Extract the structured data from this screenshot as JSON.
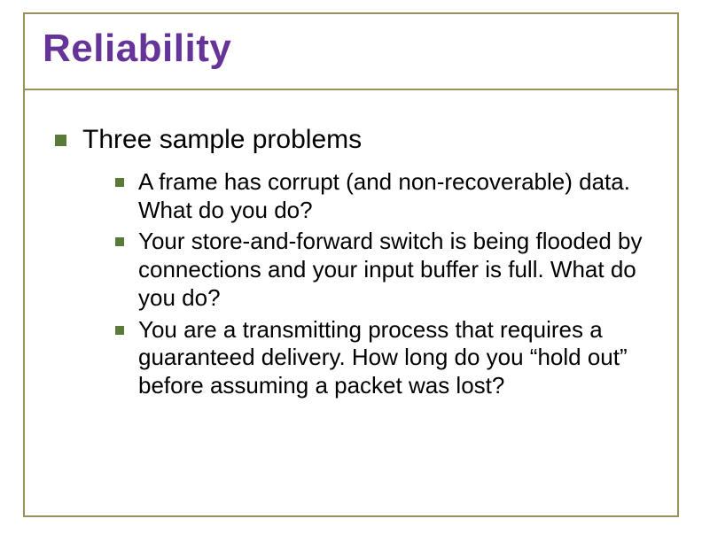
{
  "title": "Reliability",
  "title_color": "#663399",
  "frame_color": "#9a915a",
  "underline_color": "#9a915a",
  "bullet_color": "#5a7a3a",
  "body": {
    "level1": "Three sample problems",
    "subitems": [
      "A frame has corrupt (and non-recoverable) data.  What do you do?",
      "Your store-and-forward switch is being flooded by connections and your input buffer is full.  What do you do?",
      "You are a transmitting process that requires a guaranteed delivery.  How long do you “hold out” before assuming a packet was lost?"
    ]
  }
}
